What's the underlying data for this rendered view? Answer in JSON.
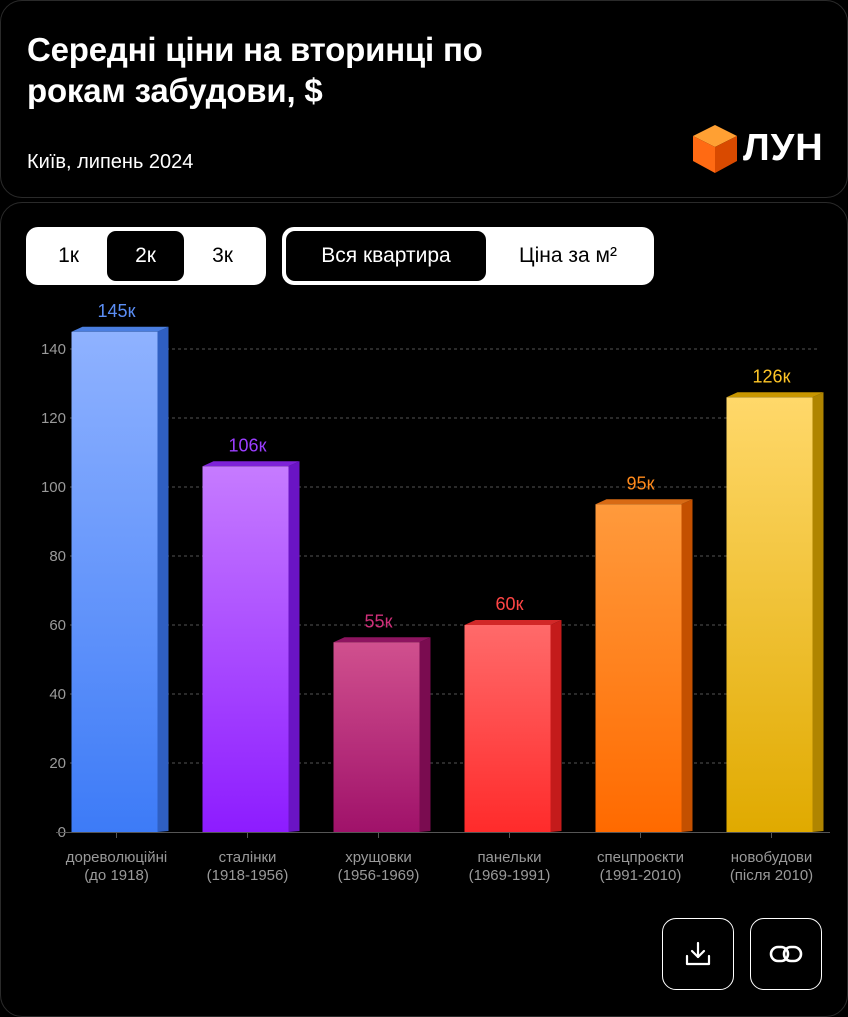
{
  "header": {
    "title": "Середні ціни на вторинці по рокам забудови, $",
    "subtitle": "Київ, липень 2024",
    "logo_text": "ЛУН"
  },
  "controls": {
    "rooms": [
      {
        "label": "1к",
        "active": false
      },
      {
        "label": "2к",
        "active": true
      },
      {
        "label": "3к",
        "active": false
      }
    ],
    "price_mode": [
      {
        "label": "Вся квартира",
        "active": true
      },
      {
        "label": "Ціна за м²",
        "active": false
      }
    ]
  },
  "colors": {
    "logo": "#ff6a13",
    "grid": "#555555",
    "axis_text": "#9a9a9a"
  },
  "chart_data": {
    "type": "bar",
    "title": "Середні ціни на вторинці по рокам забудови, $",
    "subtitle": "Київ, липень 2024",
    "xlabel": "",
    "ylabel": "",
    "ylim": [
      0,
      140
    ],
    "yticks": [
      0,
      20,
      40,
      60,
      80,
      100,
      120,
      140
    ],
    "grid": true,
    "categories": [
      [
        "дореволюційні",
        "(до 1918)"
      ],
      [
        "сталінки",
        "(1918-1956)"
      ],
      [
        "хрущовки",
        "(1956-1969)"
      ],
      [
        "панельки",
        "(1969-1991)"
      ],
      [
        "спецпроєкти",
        "(1991-2010)"
      ],
      [
        "новобудови",
        "(після 2010)"
      ]
    ],
    "values": [
      145,
      106,
      55,
      60,
      95,
      126
    ],
    "value_labels": [
      "145к",
      "106к",
      "55к",
      "60к",
      "95к",
      "126к"
    ],
    "bar_colors": [
      {
        "top": "#8fb2ff",
        "bottom": "#3d7bf7",
        "side": "#2f5fc2",
        "cap": "#4a7ee0",
        "label": "#5b8ef5"
      },
      {
        "top": "#c67bff",
        "bottom": "#8d1cff",
        "side": "#6a14c4",
        "cap": "#7e22d8",
        "label": "#9b3dff"
      },
      {
        "top": "#d0508e",
        "bottom": "#a0126a",
        "side": "#7a0c50",
        "cap": "#8e1460",
        "label": "#d0307a"
      },
      {
        "top": "#ff6a6a",
        "bottom": "#ff2b2b",
        "side": "#c41b1b",
        "cap": "#d22828",
        "label": "#ff4545"
      },
      {
        "top": "#ff9a3c",
        "bottom": "#ff6a00",
        "side": "#c45000",
        "cap": "#d86a14",
        "label": "#ff8a1c"
      },
      {
        "top": "#ffd86a",
        "bottom": "#e0aa00",
        "side": "#b08500",
        "cap": "#c89600",
        "label": "#ffc627"
      }
    ]
  }
}
